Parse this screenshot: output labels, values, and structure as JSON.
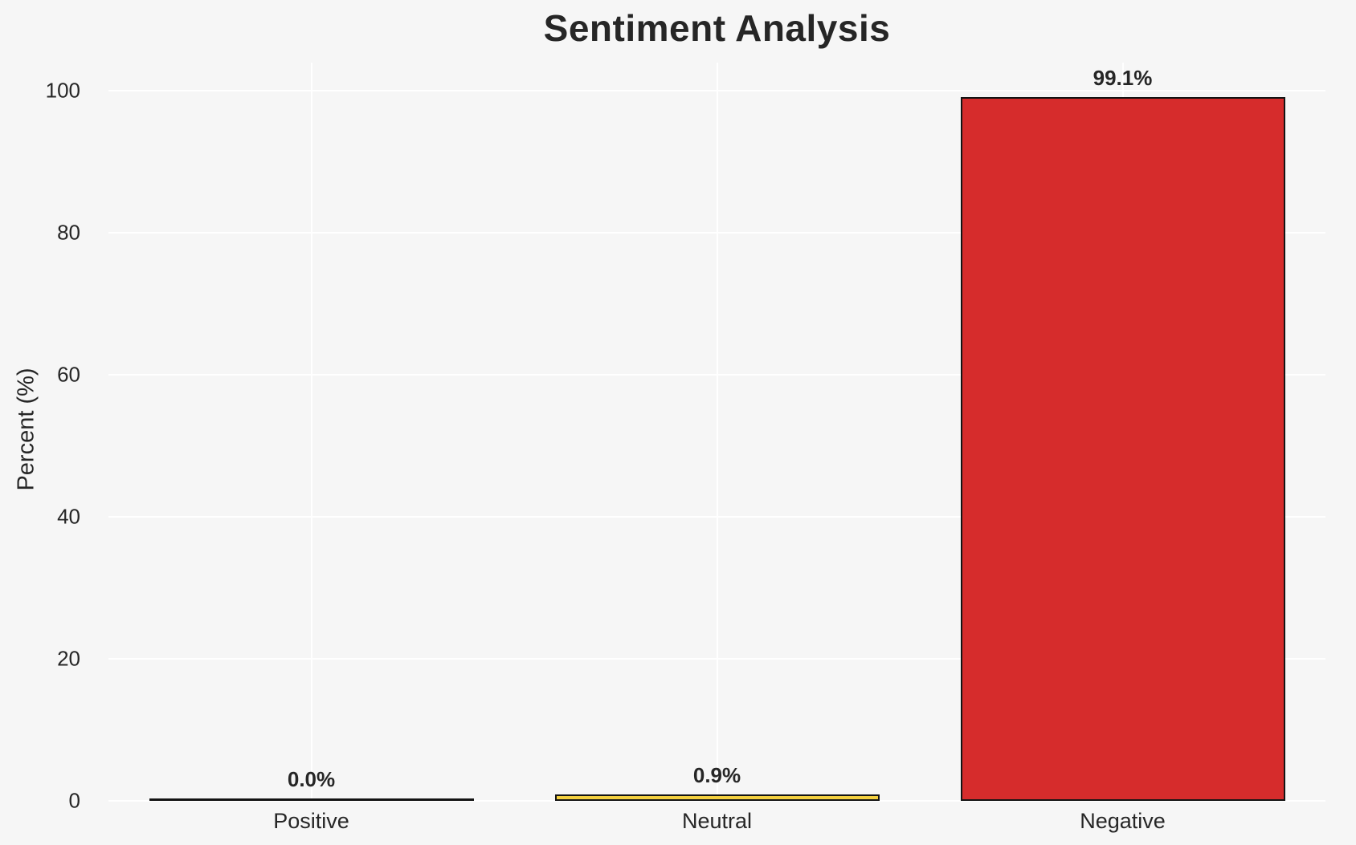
{
  "chart_data": {
    "type": "bar",
    "title": "Sentiment Analysis",
    "categories": [
      "Positive",
      "Neutral",
      "Negative"
    ],
    "values": [
      0.0,
      0.9,
      99.1
    ],
    "bar_labels": [
      "0.0%",
      "0.9%",
      "99.1%"
    ],
    "xlabel": "",
    "ylabel": "Percent (%)",
    "yticks": [
      0,
      20,
      40,
      60,
      80,
      100
    ],
    "ylim": [
      0,
      104
    ],
    "grid": true,
    "legend": false,
    "bar_colors": [
      null,
      "#f4d03f",
      "#d62c2c"
    ],
    "bar_edge_color": "#141414",
    "background_color": "#f6f6f6",
    "gridline_color": "#ffffff",
    "text_color": "#262626"
  }
}
